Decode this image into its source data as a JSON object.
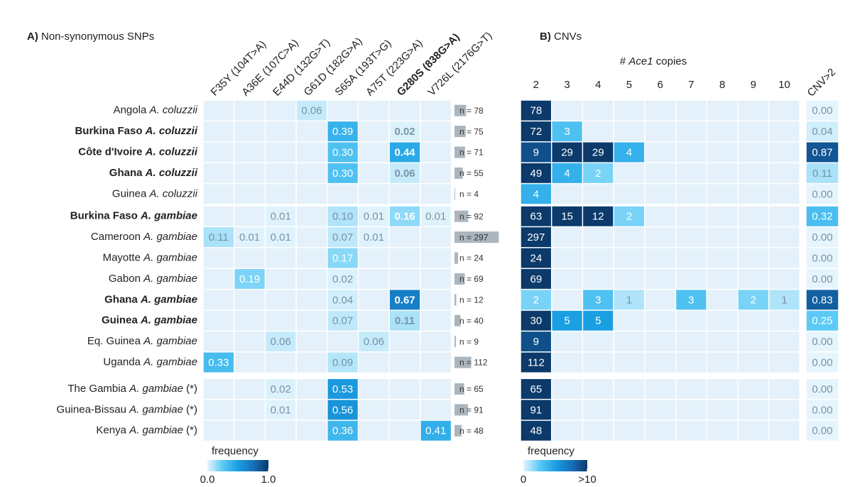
{
  "chart_data": {
    "type": "heatmap",
    "colors": {
      "empty": "#e4f1fa",
      "scale": [
        "#e6f5fd",
        "#5ccaf5",
        "#1a9fe3",
        "#1670bb",
        "#0b3a6b"
      ],
      "n_bar": "#aab5bd",
      "light_text": "#7893a6",
      "dark_text": "#ffffff"
    },
    "panel_a": {
      "tag": "A)",
      "title": "Non-synonymous SNPs",
      "columns": [
        "F35Y (104T>A)",
        "A36E (107C>A)",
        "E44D (132G>T)",
        "G61D (182G>A)",
        "S65A (193T>G)",
        "A75T (223G>A)",
        "G280S (838G>A)",
        "V726L (2176G>T)"
      ],
      "highlight_column": 6,
      "legend": {
        "title": "frequency",
        "ticks": [
          {
            "value": 0,
            "label": "0.0"
          },
          {
            "value": 1,
            "label": "1.0"
          }
        ]
      }
    },
    "panel_b": {
      "tag": "B)",
      "title": "CNVs",
      "axis_title": {
        "prefix": "#",
        "gene": "Ace1",
        "suffix": "copies"
      },
      "columns": [
        2,
        3,
        4,
        5,
        6,
        7,
        8,
        9,
        10
      ],
      "freq_column": "CNV>2",
      "legend": {
        "title": "frequency",
        "ticks": [
          0,
          {
            "value": 10,
            "label": ">10"
          }
        ]
      }
    },
    "groups": [
      {
        "rows": [
          {
            "country": "Angola",
            "species": "A. coluzzii",
            "bold": false,
            "values": [
              null,
              null,
              null,
              0.06,
              null,
              null,
              null,
              null
            ],
            "value_labels": [
              null,
              null,
              null,
              "0.06",
              null,
              null,
              null,
              null
            ],
            "n": 78,
            "n_label": "n = 78",
            "copies": [
              78,
              null,
              null,
              null,
              null,
              null,
              null,
              null,
              null
            ],
            "cnv": 0,
            "cnv_label": "0.00"
          },
          {
            "country": "Burkina Faso",
            "species": "A. coluzzii",
            "bold": true,
            "values": [
              null,
              null,
              null,
              null,
              0.39,
              null,
              0.02,
              null
            ],
            "value_labels": [
              null,
              null,
              null,
              null,
              "0.39",
              null,
              "0.02",
              null
            ],
            "n": 75,
            "n_label": "n = 75",
            "copies": [
              72,
              3,
              null,
              null,
              null,
              null,
              null,
              null,
              null
            ],
            "cnv": 0.04,
            "cnv_label": "0.04"
          },
          {
            "country": "Côte d'Ivoire",
            "species": "A. coluzzii",
            "bold": true,
            "values": [
              null,
              null,
              null,
              null,
              0.3,
              null,
              0.44,
              null
            ],
            "value_labels": [
              null,
              null,
              null,
              null,
              "0.30",
              null,
              "0.44",
              null
            ],
            "n": 71,
            "n_label": "n = 71",
            "copies": [
              9,
              29,
              29,
              4,
              null,
              null,
              null,
              null,
              null
            ],
            "cnv": 0.87,
            "cnv_label": "0.87"
          },
          {
            "country": "Ghana",
            "species": "A. coluzzii",
            "bold": true,
            "values": [
              null,
              null,
              null,
              null,
              0.3,
              null,
              0.06,
              null
            ],
            "value_labels": [
              null,
              null,
              null,
              null,
              "0.30",
              null,
              "0.06",
              null
            ],
            "n": 55,
            "n_label": "n = 55",
            "copies": [
              49,
              4,
              2,
              null,
              null,
              null,
              null,
              null,
              null
            ],
            "cnv": 0.11,
            "cnv_label": "0.11"
          },
          {
            "country": "Guinea",
            "species": "A. coluzzii",
            "bold": false,
            "values": [
              null,
              null,
              null,
              null,
              null,
              null,
              null,
              null
            ],
            "value_labels": [
              null,
              null,
              null,
              null,
              null,
              null,
              null,
              null
            ],
            "n": 4,
            "n_label": "n = 4",
            "copies": [
              4,
              null,
              null,
              null,
              null,
              null,
              null,
              null,
              null
            ],
            "cnv": 0,
            "cnv_label": "0.00"
          }
        ]
      },
      {
        "rows": [
          {
            "country": "Burkina Faso",
            "species": "A. gambiae",
            "bold": true,
            "values": [
              null,
              null,
              0.01,
              null,
              0.1,
              0.01,
              0.16,
              0.01
            ],
            "value_labels": [
              null,
              null,
              "0.01",
              null,
              "0.10",
              "0.01",
              "0.16",
              "0.01"
            ],
            "n": 92,
            "n_label": "n = 92",
            "copies": [
              63,
              15,
              12,
              2,
              null,
              null,
              null,
              null,
              null
            ],
            "cnv": 0.32,
            "cnv_label": "0.32"
          },
          {
            "country": "Cameroon",
            "species": "A. gambiae",
            "bold": false,
            "values": [
              0.11,
              0.01,
              0.01,
              null,
              0.07,
              0.01,
              null,
              null
            ],
            "value_labels": [
              "0.11",
              "0.01",
              "0.01",
              null,
              "0.07",
              "0.01",
              null,
              null
            ],
            "n": 297,
            "n_label": "n = 297",
            "copies": [
              297,
              null,
              null,
              null,
              null,
              null,
              null,
              null,
              null
            ],
            "cnv": 0,
            "cnv_label": "0.00"
          },
          {
            "country": "Mayotte",
            "species": "A. gambiae",
            "bold": false,
            "values": [
              null,
              null,
              null,
              null,
              0.17,
              null,
              null,
              null
            ],
            "value_labels": [
              null,
              null,
              null,
              null,
              "0.17",
              null,
              null,
              null
            ],
            "n": 24,
            "n_label": "n = 24",
            "copies": [
              24,
              null,
              null,
              null,
              null,
              null,
              null,
              null,
              null
            ],
            "cnv": 0,
            "cnv_label": "0.00"
          },
          {
            "country": "Gabon",
            "species": "A. gambiae",
            "bold": false,
            "values": [
              null,
              0.19,
              null,
              null,
              0.02,
              null,
              null,
              null
            ],
            "value_labels": [
              null,
              "0.19",
              null,
              null,
              "0.02",
              null,
              null,
              null
            ],
            "n": 69,
            "n_label": "n = 69",
            "copies": [
              69,
              null,
              null,
              null,
              null,
              null,
              null,
              null,
              null
            ],
            "cnv": 0,
            "cnv_label": "0.00"
          },
          {
            "country": "Ghana",
            "species": "A. gambiae",
            "bold": true,
            "values": [
              null,
              null,
              null,
              null,
              0.04,
              null,
              0.67,
              null
            ],
            "value_labels": [
              null,
              null,
              null,
              null,
              "0.04",
              null,
              "0.67",
              null
            ],
            "n": 12,
            "n_label": "n = 12",
            "copies": [
              2,
              null,
              3,
              1,
              null,
              3,
              null,
              2,
              1
            ],
            "cnv": 0.83,
            "cnv_label": "0.83"
          },
          {
            "country": "Guinea",
            "species": "A. gambiae",
            "bold": true,
            "values": [
              null,
              null,
              null,
              null,
              0.07,
              null,
              0.11,
              null
            ],
            "value_labels": [
              null,
              null,
              null,
              null,
              "0.07",
              null,
              "0.11",
              null
            ],
            "n": 40,
            "n_label": "n = 40",
            "copies": [
              30,
              5,
              5,
              null,
              null,
              null,
              null,
              null,
              null
            ],
            "cnv": 0.25,
            "cnv_label": "0.25"
          },
          {
            "country": "Eq. Guinea",
            "species": "A. gambiae",
            "bold": false,
            "values": [
              null,
              null,
              0.06,
              null,
              null,
              0.06,
              null,
              null
            ],
            "value_labels": [
              null,
              null,
              "0.06",
              null,
              null,
              "0.06",
              null,
              null
            ],
            "n": 9,
            "n_label": "n = 9",
            "copies": [
              9,
              null,
              null,
              null,
              null,
              null,
              null,
              null,
              null
            ],
            "cnv": 0,
            "cnv_label": "0.00"
          },
          {
            "country": "Uganda",
            "species": "A. gambiae",
            "bold": false,
            "values": [
              0.33,
              null,
              null,
              null,
              0.09,
              null,
              null,
              null
            ],
            "value_labels": [
              "0.33",
              null,
              null,
              null,
              "0.09",
              null,
              null,
              null
            ],
            "n": 112,
            "n_label": "n = 112",
            "copies": [
              112,
              null,
              null,
              null,
              null,
              null,
              null,
              null,
              null
            ],
            "cnv": 0,
            "cnv_label": "0.00"
          }
        ]
      },
      {
        "rows": [
          {
            "country": "The Gambia",
            "species": "A. gambiae",
            "suffix": "(*)",
            "bold": false,
            "values": [
              null,
              null,
              0.02,
              null,
              0.53,
              null,
              null,
              null
            ],
            "value_labels": [
              null,
              null,
              "0.02",
              null,
              "0.53",
              null,
              null,
              null
            ],
            "n": 65,
            "n_label": "n = 65",
            "copies": [
              65,
              null,
              null,
              null,
              null,
              null,
              null,
              null,
              null
            ],
            "cnv": 0,
            "cnv_label": "0.00"
          },
          {
            "country": "Guinea-Bissau",
            "species": "A. gambiae",
            "suffix": "(*)",
            "bold": false,
            "values": [
              null,
              null,
              0.01,
              null,
              0.56,
              null,
              null,
              null
            ],
            "value_labels": [
              null,
              null,
              "0.01",
              null,
              "0.56",
              null,
              null,
              null
            ],
            "n": 91,
            "n_label": "n = 91",
            "copies": [
              91,
              null,
              null,
              null,
              null,
              null,
              null,
              null,
              null
            ],
            "cnv": 0,
            "cnv_label": "0.00"
          },
          {
            "country": "Kenya",
            "species": "A. gambiae",
            "suffix": "(*)",
            "bold": false,
            "values": [
              null,
              null,
              null,
              null,
              0.36,
              null,
              null,
              0.41
            ],
            "value_labels": [
              null,
              null,
              null,
              null,
              "0.36",
              null,
              null,
              "0.41"
            ],
            "n": 48,
            "n_label": "n = 48",
            "copies": [
              48,
              null,
              null,
              null,
              null,
              null,
              null,
              null,
              null
            ],
            "cnv": 0,
            "cnv_label": "0.00"
          }
        ]
      }
    ]
  }
}
